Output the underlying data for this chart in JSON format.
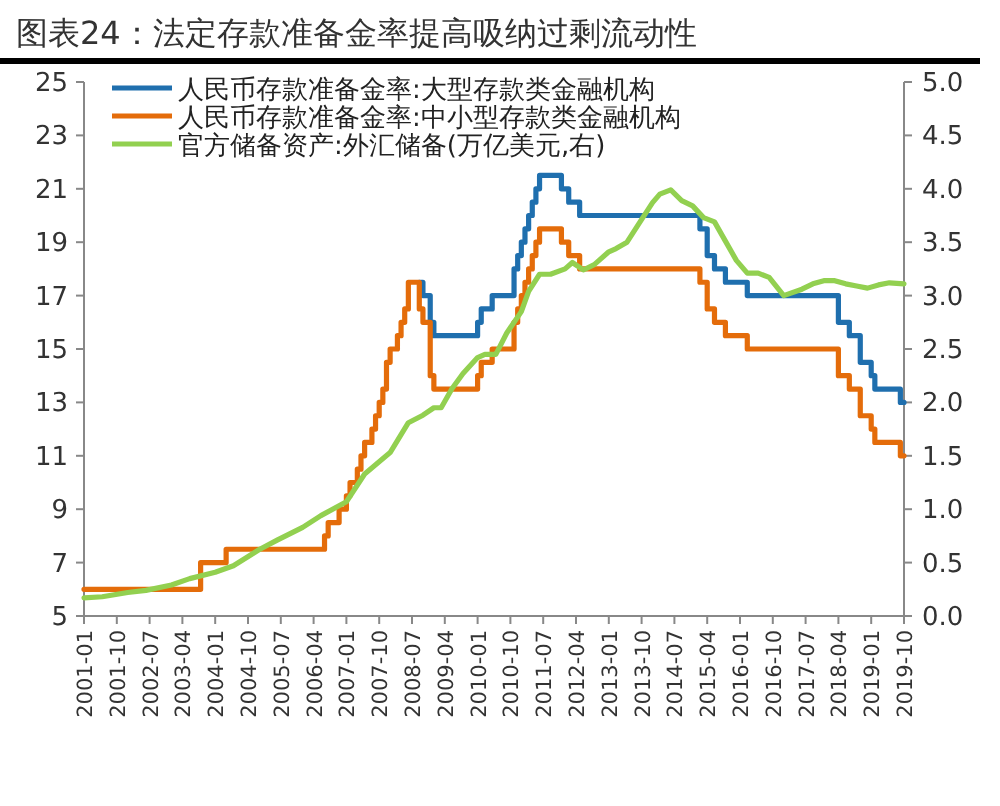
{
  "chart_data": {
    "type": "step",
    "title": "图表24：法定存款准备金率提高吸纳过剩流动性",
    "xlim": [
      "2001-01",
      "2019-10"
    ],
    "xticks": [
      "2001-01",
      "2001-10",
      "2002-07",
      "2003-04",
      "2004-01",
      "2004-10",
      "2005-07",
      "2006-04",
      "2007-01",
      "2007-10",
      "2008-07",
      "2009-04",
      "2010-01",
      "2010-10",
      "2011-07",
      "2012-04",
      "2013-01",
      "2013-10",
      "2014-07",
      "2015-04",
      "2016-01",
      "2016-10",
      "2017-07",
      "2018-04",
      "2019-01",
      "2019-10"
    ],
    "ylim": [
      5,
      25
    ],
    "yticks": [
      5,
      7,
      9,
      11,
      13,
      15,
      17,
      19,
      21,
      23,
      25
    ],
    "y2lim": [
      0,
      5
    ],
    "y2ticks": [
      {
        "value": 0,
        "label": "0.0"
      },
      {
        "value": 0.5,
        "label": "0.5"
      },
      {
        "value": 1,
        "label": "1.0"
      },
      {
        "value": 1.5,
        "label": "1.5"
      },
      {
        "value": 2,
        "label": "2.0"
      },
      {
        "value": 2.5,
        "label": "2.5"
      },
      {
        "value": 3,
        "label": "3.0"
      },
      {
        "value": 3.5,
        "label": "3.5"
      },
      {
        "value": 4,
        "label": "4.0"
      },
      {
        "value": 4.5,
        "label": "4.5"
      },
      {
        "value": 5,
        "label": "5.0"
      }
    ],
    "legend": "top left",
    "grid": false,
    "marker": "none",
    "line_style": "solid",
    "series": [
      {
        "name": "人民币存款准备金率:大型存款类金融机构",
        "color": "#1f6fae",
        "x": [
          "2008-09",
          "2008-10",
          "2008-12",
          "2009-01",
          "2010-01",
          "2010-02",
          "2010-05",
          "2010-11",
          "2010-12",
          "2011-01",
          "2011-02",
          "2011-03",
          "2011-04",
          "2011-05",
          "2011-06",
          "2011-12",
          "2012-02",
          "2012-05",
          "2015-02",
          "2015-04",
          "2015-06",
          "2015-09",
          "2016-03",
          "2018-04",
          "2018-07",
          "2018-10",
          "2019-01",
          "2019-02",
          "2019-09",
          "2019-10"
        ],
        "values": [
          17.5,
          17,
          16,
          15.5,
          16,
          16.5,
          17,
          18,
          18.5,
          19,
          19.5,
          20,
          20.5,
          21,
          21.5,
          21,
          20.5,
          20,
          19.5,
          18.5,
          18,
          17.5,
          17,
          16,
          15.5,
          14.5,
          14,
          13.5,
          13,
          13
        ]
      },
      {
        "name": "人民币存款准备金率:中小型存款类金融机构",
        "color": "#e46c0a",
        "x": [
          "2001-01",
          "2003-09",
          "2004-04",
          "2006-07",
          "2006-08",
          "2006-11",
          "2007-01",
          "2007-02",
          "2007-04",
          "2007-05",
          "2007-06",
          "2007-08",
          "2007-09",
          "2007-10",
          "2007-11",
          "2007-12",
          "2008-01",
          "2008-03",
          "2008-04",
          "2008-05",
          "2008-06",
          "2008-09",
          "2008-10",
          "2008-12",
          "2009-01",
          "2010-01",
          "2010-02",
          "2010-05",
          "2010-11",
          "2010-12",
          "2011-01",
          "2011-02",
          "2011-03",
          "2011-04",
          "2011-05",
          "2011-06",
          "2011-12",
          "2012-02",
          "2012-05",
          "2015-02",
          "2015-04",
          "2015-06",
          "2015-09",
          "2016-03",
          "2018-04",
          "2018-07",
          "2018-10",
          "2019-01",
          "2019-02",
          "2019-09",
          "2019-10"
        ],
        "values": [
          6,
          7,
          7.5,
          8,
          8.5,
          9,
          9.5,
          10,
          10.5,
          11,
          11.5,
          12,
          12.5,
          13,
          13.5,
          14.5,
          15,
          15.5,
          16,
          16.5,
          17.5,
          16.5,
          16,
          14,
          13.5,
          14,
          14.5,
          15,
          16,
          16.5,
          17,
          17.5,
          18,
          18.5,
          19,
          19.5,
          19,
          18.5,
          18,
          17.5,
          16.5,
          16,
          15.5,
          15,
          14,
          13.5,
          12.5,
          12,
          11.5,
          11,
          11
        ]
      },
      {
        "name": "官方储备资产:外汇储备(万亿美元,右)",
        "color": "#92d050",
        "type": "line",
        "axis": "y2",
        "x": [
          "2001-01",
          "2001-06",
          "2002-01",
          "2002-06",
          "2003-01",
          "2003-06",
          "2004-01",
          "2004-06",
          "2005-01",
          "2005-06",
          "2006-01",
          "2006-06",
          "2007-01",
          "2007-06",
          "2008-01",
          "2008-06",
          "2008-10",
          "2009-01",
          "2009-03",
          "2009-06",
          "2009-09",
          "2010-01",
          "2010-03",
          "2010-06",
          "2010-09",
          "2011-01",
          "2011-03",
          "2011-06",
          "2011-09",
          "2012-01",
          "2012-03",
          "2012-06",
          "2012-09",
          "2013-01",
          "2013-03",
          "2013-06",
          "2013-09",
          "2014-01",
          "2014-03",
          "2014-06",
          "2014-09",
          "2014-12",
          "2015-03",
          "2015-06",
          "2015-09",
          "2015-12",
          "2016-03",
          "2016-06",
          "2016-09",
          "2017-01",
          "2017-06",
          "2017-09",
          "2017-12",
          "2018-03",
          "2018-06",
          "2018-09",
          "2018-12",
          "2019-03",
          "2019-06",
          "2019-10"
        ],
        "values": [
          0.17,
          0.18,
          0.22,
          0.24,
          0.29,
          0.35,
          0.41,
          0.47,
          0.62,
          0.71,
          0.83,
          0.94,
          1.07,
          1.33,
          1.53,
          1.81,
          1.88,
          1.95,
          1.95,
          2.13,
          2.27,
          2.42,
          2.45,
          2.45,
          2.65,
          2.85,
          3.04,
          3.2,
          3.2,
          3.25,
          3.31,
          3.24,
          3.29,
          3.41,
          3.44,
          3.5,
          3.66,
          3.87,
          3.95,
          3.99,
          3.89,
          3.84,
          3.73,
          3.69,
          3.51,
          3.33,
          3.21,
          3.21,
          3.17,
          3.0,
          3.06,
          3.11,
          3.14,
          3.14,
          3.11,
          3.09,
          3.07,
          3.1,
          3.12,
          3.11
        ]
      }
    ]
  }
}
